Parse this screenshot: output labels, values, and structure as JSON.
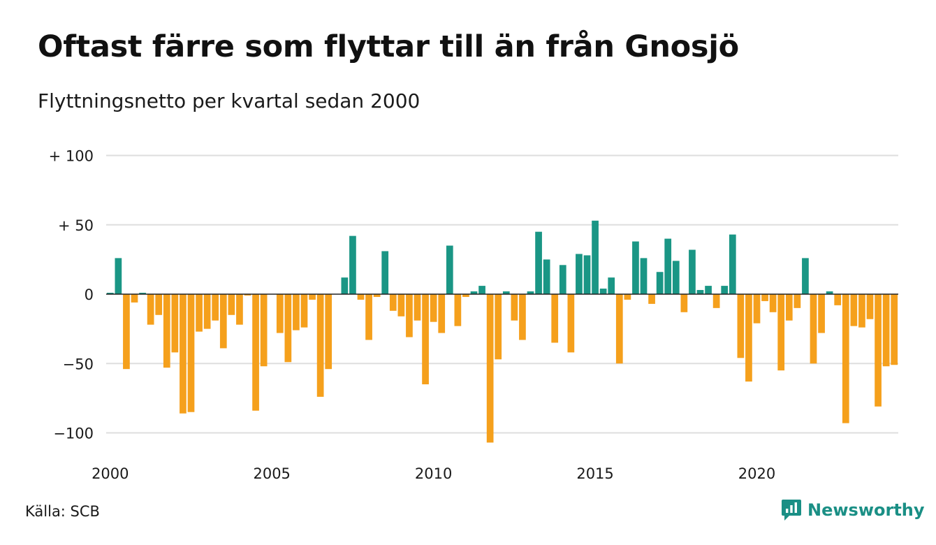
{
  "header": {
    "title": "Oftast färre som flyttar till än från Gnosjö",
    "subtitle": "Flyttningsnetto per kvartal sedan 2000"
  },
  "footer": {
    "source": "Källa: SCB",
    "brand": "Newsworthy"
  },
  "colors": {
    "positive": "#1a9685",
    "negative": "#f5a01c",
    "grid": "#dedede",
    "brand": "#1a8f85"
  },
  "chart_data": {
    "type": "bar",
    "title": "Oftast färre som flyttar till än från Gnosjö",
    "subtitle": "Flyttningsnetto per kvartal sedan 2000",
    "xlabel": "",
    "ylabel": "",
    "ylim": [
      -115,
      105
    ],
    "grid": true,
    "y_ticks": [
      {
        "value": 100,
        "label": "+ 100"
      },
      {
        "value": 50,
        "label": "+  50"
      },
      {
        "value": 0,
        "label": "0"
      },
      {
        "value": -50,
        "label": "−50"
      },
      {
        "value": -100,
        "label": "−100"
      }
    ],
    "x_ticks": [
      "2000",
      "2005",
      "2010",
      "2015",
      "2020"
    ],
    "start_year": 2000,
    "values": [
      1,
      26,
      -54,
      -6,
      1,
      -22,
      -15,
      -53,
      -42,
      -86,
      -85,
      -27,
      -25,
      -19,
      -39,
      -15,
      -22,
      -1,
      -84,
      -52,
      0,
      -28,
      -49,
      -26,
      -24,
      -4,
      -74,
      -54,
      0,
      12,
      42,
      -4,
      -33,
      -2,
      31,
      -12,
      -16,
      -31,
      -19,
      -65,
      -20,
      -28,
      35,
      -23,
      -2,
      2,
      6,
      -107,
      -47,
      2,
      -19,
      -33,
      2,
      45,
      25,
      -35,
      21,
      -42,
      29,
      28,
      53,
      4,
      12,
      -50,
      -4,
      38,
      26,
      -7,
      16,
      40,
      24,
      -13,
      32,
      3,
      6,
      -10,
      6,
      43,
      -46,
      -63,
      -21,
      -5,
      -13,
      -55,
      -19,
      -10,
      26,
      -50,
      -28,
      2,
      -8,
      -93,
      -23,
      -24,
      -18,
      -81,
      -52,
      -51
    ]
  }
}
